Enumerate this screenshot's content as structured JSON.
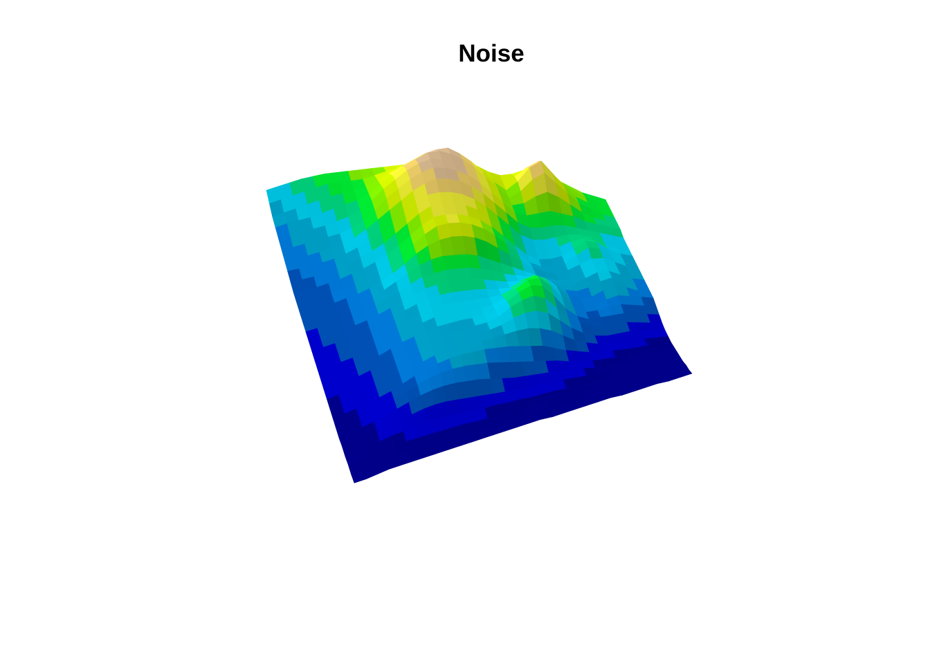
{
  "chart_data": {
    "type": "surface",
    "title": "Noise",
    "xlabel": "",
    "ylabel": "",
    "zlabel": "",
    "grid": false,
    "legend": "none",
    "colormap": [
      "#00008b",
      "#0000cd",
      "#0050b4",
      "#0078d7",
      "#00a0c8",
      "#00c8e6",
      "#00d27d",
      "#00e632",
      "#7de600",
      "#c8e600",
      "#e6e632",
      "#e6c864",
      "#d2b48c"
    ],
    "x": [
      0,
      1,
      2,
      3,
      4,
      5,
      6,
      7,
      8,
      9,
      10,
      11,
      12,
      13,
      14,
      15,
      16,
      17,
      18,
      19,
      20,
      21,
      22,
      23,
      24,
      25,
      26,
      27,
      28,
      29
    ],
    "y": [
      0,
      1,
      2,
      3,
      4,
      5,
      6,
      7,
      8,
      9,
      10,
      11,
      12,
      13,
      14,
      15,
      16,
      17,
      18,
      19,
      20,
      21,
      22,
      23,
      24,
      25,
      26,
      27,
      28,
      29
    ],
    "z": [
      [
        0.4,
        0.44,
        0.48,
        0.52,
        0.55,
        0.58,
        0.6,
        0.62,
        0.64,
        0.66,
        0.68,
        0.7,
        0.72,
        0.74,
        0.76,
        0.78,
        0.8,
        0.78,
        0.76,
        0.72,
        0.7,
        0.72,
        0.76,
        0.8,
        0.76,
        0.7,
        0.66,
        0.62,
        0.6,
        0.58
      ],
      [
        0.36,
        0.4,
        0.44,
        0.48,
        0.52,
        0.56,
        0.58,
        0.6,
        0.62,
        0.66,
        0.7,
        0.74,
        0.78,
        0.82,
        0.86,
        0.9,
        0.88,
        0.84,
        0.78,
        0.72,
        0.68,
        0.74,
        0.82,
        0.88,
        0.8,
        0.72,
        0.66,
        0.62,
        0.58,
        0.56
      ],
      [
        0.32,
        0.36,
        0.4,
        0.44,
        0.48,
        0.52,
        0.55,
        0.58,
        0.62,
        0.68,
        0.74,
        0.8,
        0.86,
        0.92,
        0.96,
        0.98,
        0.94,
        0.88,
        0.8,
        0.72,
        0.66,
        0.74,
        0.86,
        0.92,
        0.82,
        0.72,
        0.64,
        0.6,
        0.56,
        0.54
      ],
      [
        0.3,
        0.34,
        0.37,
        0.4,
        0.44,
        0.48,
        0.52,
        0.56,
        0.62,
        0.7,
        0.78,
        0.86,
        0.92,
        0.98,
        1.0,
        0.98,
        0.94,
        0.88,
        0.8,
        0.72,
        0.64,
        0.7,
        0.8,
        0.86,
        0.78,
        0.7,
        0.62,
        0.58,
        0.54,
        0.52
      ],
      [
        0.28,
        0.31,
        0.34,
        0.37,
        0.4,
        0.44,
        0.48,
        0.54,
        0.62,
        0.72,
        0.8,
        0.88,
        0.94,
        0.98,
        0.98,
        0.96,
        0.92,
        0.86,
        0.78,
        0.7,
        0.62,
        0.64,
        0.7,
        0.74,
        0.7,
        0.64,
        0.58,
        0.54,
        0.52,
        0.5
      ],
      [
        0.26,
        0.28,
        0.31,
        0.34,
        0.37,
        0.4,
        0.45,
        0.52,
        0.6,
        0.7,
        0.78,
        0.86,
        0.92,
        0.96,
        0.96,
        0.94,
        0.9,
        0.84,
        0.76,
        0.68,
        0.6,
        0.58,
        0.6,
        0.62,
        0.6,
        0.58,
        0.54,
        0.52,
        0.5,
        0.48
      ],
      [
        0.24,
        0.26,
        0.28,
        0.31,
        0.34,
        0.38,
        0.43,
        0.5,
        0.58,
        0.66,
        0.74,
        0.82,
        0.88,
        0.92,
        0.92,
        0.9,
        0.86,
        0.8,
        0.72,
        0.64,
        0.56,
        0.52,
        0.52,
        0.54,
        0.54,
        0.52,
        0.5,
        0.48,
        0.46,
        0.44
      ],
      [
        0.22,
        0.24,
        0.26,
        0.29,
        0.32,
        0.36,
        0.41,
        0.47,
        0.54,
        0.62,
        0.7,
        0.78,
        0.84,
        0.86,
        0.86,
        0.84,
        0.8,
        0.74,
        0.66,
        0.58,
        0.5,
        0.46,
        0.46,
        0.48,
        0.5,
        0.5,
        0.48,
        0.46,
        0.44,
        0.42
      ],
      [
        0.2,
        0.22,
        0.24,
        0.27,
        0.3,
        0.34,
        0.39,
        0.44,
        0.5,
        0.58,
        0.66,
        0.74,
        0.8,
        0.82,
        0.82,
        0.8,
        0.76,
        0.7,
        0.62,
        0.54,
        0.46,
        0.42,
        0.42,
        0.44,
        0.48,
        0.5,
        0.48,
        0.44,
        0.42,
        0.4
      ],
      [
        0.18,
        0.2,
        0.22,
        0.25,
        0.28,
        0.32,
        0.36,
        0.41,
        0.47,
        0.54,
        0.62,
        0.7,
        0.76,
        0.78,
        0.78,
        0.76,
        0.72,
        0.66,
        0.58,
        0.5,
        0.42,
        0.38,
        0.38,
        0.4,
        0.46,
        0.52,
        0.5,
        0.44,
        0.4,
        0.38
      ],
      [
        0.17,
        0.19,
        0.21,
        0.23,
        0.26,
        0.3,
        0.34,
        0.39,
        0.45,
        0.52,
        0.6,
        0.68,
        0.74,
        0.76,
        0.76,
        0.74,
        0.7,
        0.64,
        0.56,
        0.48,
        0.4,
        0.36,
        0.36,
        0.38,
        0.44,
        0.5,
        0.48,
        0.42,
        0.38,
        0.36
      ],
      [
        0.16,
        0.18,
        0.2,
        0.22,
        0.25,
        0.28,
        0.32,
        0.37,
        0.43,
        0.5,
        0.58,
        0.64,
        0.68,
        0.7,
        0.7,
        0.68,
        0.64,
        0.58,
        0.52,
        0.46,
        0.4,
        0.36,
        0.34,
        0.36,
        0.4,
        0.44,
        0.44,
        0.4,
        0.36,
        0.34
      ],
      [
        0.15,
        0.17,
        0.19,
        0.21,
        0.24,
        0.27,
        0.31,
        0.36,
        0.42,
        0.48,
        0.54,
        0.58,
        0.6,
        0.6,
        0.6,
        0.58,
        0.54,
        0.5,
        0.46,
        0.42,
        0.38,
        0.34,
        0.32,
        0.34,
        0.38,
        0.42,
        0.42,
        0.38,
        0.34,
        0.32
      ],
      [
        0.14,
        0.16,
        0.18,
        0.2,
        0.23,
        0.26,
        0.3,
        0.35,
        0.4,
        0.45,
        0.5,
        0.52,
        0.54,
        0.54,
        0.54,
        0.52,
        0.5,
        0.46,
        0.44,
        0.42,
        0.4,
        0.36,
        0.32,
        0.32,
        0.36,
        0.4,
        0.4,
        0.36,
        0.32,
        0.3
      ],
      [
        0.13,
        0.15,
        0.17,
        0.19,
        0.22,
        0.25,
        0.29,
        0.33,
        0.38,
        0.42,
        0.46,
        0.48,
        0.5,
        0.5,
        0.5,
        0.48,
        0.46,
        0.44,
        0.44,
        0.46,
        0.44,
        0.38,
        0.32,
        0.3,
        0.32,
        0.36,
        0.38,
        0.34,
        0.3,
        0.28
      ],
      [
        0.12,
        0.14,
        0.16,
        0.18,
        0.21,
        0.24,
        0.28,
        0.32,
        0.36,
        0.4,
        0.43,
        0.45,
        0.46,
        0.46,
        0.46,
        0.45,
        0.44,
        0.44,
        0.48,
        0.52,
        0.48,
        0.4,
        0.32,
        0.28,
        0.28,
        0.32,
        0.34,
        0.32,
        0.28,
        0.26
      ],
      [
        0.11,
        0.13,
        0.15,
        0.17,
        0.2,
        0.23,
        0.27,
        0.31,
        0.34,
        0.38,
        0.41,
        0.42,
        0.43,
        0.43,
        0.43,
        0.43,
        0.44,
        0.48,
        0.54,
        0.56,
        0.5,
        0.4,
        0.3,
        0.26,
        0.26,
        0.28,
        0.3,
        0.28,
        0.26,
        0.24
      ],
      [
        0.1,
        0.12,
        0.14,
        0.16,
        0.19,
        0.22,
        0.26,
        0.3,
        0.33,
        0.36,
        0.39,
        0.4,
        0.41,
        0.41,
        0.41,
        0.42,
        0.46,
        0.52,
        0.58,
        0.58,
        0.5,
        0.38,
        0.28,
        0.24,
        0.24,
        0.26,
        0.26,
        0.24,
        0.22,
        0.2
      ],
      [
        0.09,
        0.11,
        0.13,
        0.15,
        0.18,
        0.21,
        0.25,
        0.29,
        0.32,
        0.35,
        0.37,
        0.38,
        0.39,
        0.39,
        0.4,
        0.42,
        0.48,
        0.54,
        0.58,
        0.56,
        0.46,
        0.34,
        0.26,
        0.22,
        0.22,
        0.22,
        0.22,
        0.2,
        0.18,
        0.16
      ],
      [
        0.08,
        0.1,
        0.12,
        0.14,
        0.17,
        0.2,
        0.24,
        0.28,
        0.31,
        0.34,
        0.36,
        0.37,
        0.37,
        0.38,
        0.39,
        0.42,
        0.48,
        0.52,
        0.54,
        0.5,
        0.4,
        0.3,
        0.24,
        0.2,
        0.18,
        0.18,
        0.18,
        0.16,
        0.14,
        0.12
      ],
      [
        0.07,
        0.09,
        0.11,
        0.13,
        0.16,
        0.19,
        0.23,
        0.27,
        0.3,
        0.33,
        0.35,
        0.36,
        0.36,
        0.37,
        0.38,
        0.4,
        0.44,
        0.46,
        0.46,
        0.42,
        0.34,
        0.26,
        0.2,
        0.16,
        0.14,
        0.14,
        0.14,
        0.12,
        0.1,
        0.09
      ],
      [
        0.06,
        0.08,
        0.1,
        0.12,
        0.15,
        0.18,
        0.22,
        0.26,
        0.29,
        0.32,
        0.34,
        0.35,
        0.35,
        0.36,
        0.36,
        0.37,
        0.38,
        0.38,
        0.36,
        0.32,
        0.26,
        0.2,
        0.16,
        0.13,
        0.11,
        0.1,
        0.1,
        0.09,
        0.08,
        0.07
      ],
      [
        0.05,
        0.07,
        0.09,
        0.11,
        0.14,
        0.17,
        0.21,
        0.25,
        0.28,
        0.31,
        0.33,
        0.34,
        0.34,
        0.34,
        0.33,
        0.32,
        0.3,
        0.28,
        0.26,
        0.22,
        0.18,
        0.15,
        0.12,
        0.1,
        0.09,
        0.08,
        0.07,
        0.07,
        0.06,
        0.05
      ],
      [
        0.04,
        0.06,
        0.08,
        0.1,
        0.13,
        0.16,
        0.2,
        0.24,
        0.27,
        0.29,
        0.3,
        0.3,
        0.29,
        0.28,
        0.26,
        0.24,
        0.22,
        0.2,
        0.18,
        0.16,
        0.13,
        0.11,
        0.09,
        0.08,
        0.07,
        0.06,
        0.05,
        0.05,
        0.04,
        0.04
      ],
      [
        0.03,
        0.05,
        0.07,
        0.09,
        0.12,
        0.15,
        0.18,
        0.21,
        0.23,
        0.24,
        0.24,
        0.23,
        0.22,
        0.2,
        0.18,
        0.16,
        0.15,
        0.14,
        0.13,
        0.12,
        0.1,
        0.09,
        0.07,
        0.06,
        0.05,
        0.05,
        0.04,
        0.04,
        0.03,
        0.03
      ],
      [
        0.03,
        0.04,
        0.06,
        0.08,
        0.1,
        0.12,
        0.14,
        0.16,
        0.17,
        0.17,
        0.16,
        0.15,
        0.14,
        0.13,
        0.12,
        0.11,
        0.1,
        0.1,
        0.09,
        0.09,
        0.08,
        0.07,
        0.06,
        0.05,
        0.04,
        0.04,
        0.03,
        0.03,
        0.02,
        0.02
      ],
      [
        0.02,
        0.03,
        0.05,
        0.06,
        0.08,
        0.09,
        0.1,
        0.11,
        0.11,
        0.11,
        0.1,
        0.1,
        0.09,
        0.09,
        0.08,
        0.08,
        0.07,
        0.07,
        0.07,
        0.06,
        0.06,
        0.05,
        0.04,
        0.04,
        0.03,
        0.03,
        0.02,
        0.02,
        0.02,
        0.01
      ],
      [
        0.02,
        0.03,
        0.04,
        0.05,
        0.06,
        0.07,
        0.07,
        0.07,
        0.07,
        0.07,
        0.07,
        0.06,
        0.06,
        0.06,
        0.06,
        0.05,
        0.05,
        0.05,
        0.05,
        0.05,
        0.04,
        0.04,
        0.03,
        0.03,
        0.02,
        0.02,
        0.02,
        0.01,
        0.01,
        0.01
      ],
      [
        0.01,
        0.02,
        0.03,
        0.04,
        0.04,
        0.05,
        0.05,
        0.05,
        0.05,
        0.05,
        0.05,
        0.04,
        0.04,
        0.04,
        0.04,
        0.04,
        0.04,
        0.04,
        0.03,
        0.03,
        0.03,
        0.03,
        0.02,
        0.02,
        0.02,
        0.01,
        0.01,
        0.01,
        0.01,
        0.0
      ],
      [
        0.01,
        0.01,
        0.02,
        0.03,
        0.03,
        0.03,
        0.03,
        0.03,
        0.03,
        0.03,
        0.03,
        0.03,
        0.03,
        0.03,
        0.03,
        0.03,
        0.03,
        0.02,
        0.02,
        0.02,
        0.02,
        0.02,
        0.02,
        0.01,
        0.01,
        0.01,
        0.01,
        0.0,
        0.0,
        0.0
      ]
    ]
  }
}
